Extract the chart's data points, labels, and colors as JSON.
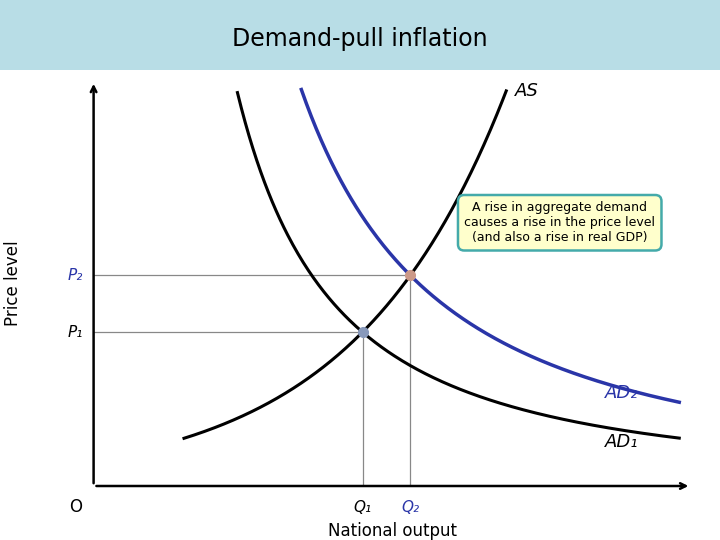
{
  "title": "Demand-pull inflation",
  "title_bg_color": "#b8dde6",
  "xlabel": "National output",
  "ylabel": "Price level",
  "origin_label": "O",
  "background_color": "#ffffff",
  "as_color": "#000000",
  "ad1_color": "#000000",
  "ad2_color": "#2a35a8",
  "as_label": "AS",
  "ad1_label": "AD₁",
  "ad2_label": "AD₂",
  "p1_label": "P₁",
  "p2_label": "P₂",
  "q1_label": "Q₁",
  "q2_label": "Q₂",
  "intersection1": [
    4.5,
    3.8
  ],
  "intersection2": [
    5.3,
    5.2
  ],
  "annotation_text": "A rise in aggregate demand\ncauses a rise in the price level\n(and also a rise in real GDP)",
  "annotation_bg": "#ffffcc",
  "annotation_border": "#44aaaa",
  "xlim": [
    0,
    10
  ],
  "ylim": [
    0,
    10
  ]
}
